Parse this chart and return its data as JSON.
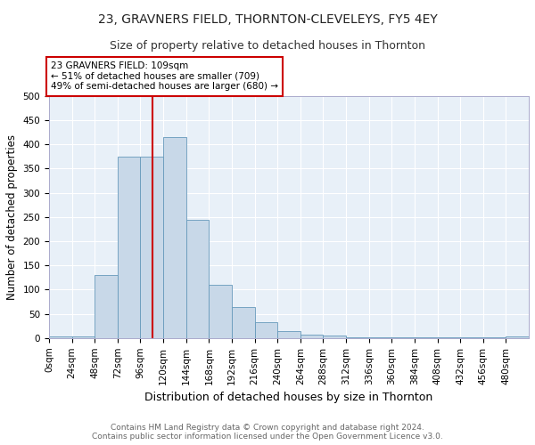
{
  "title1": "23, GRAVNERS FIELD, THORNTON-CLEVELEYS, FY5 4EY",
  "title2": "Size of property relative to detached houses in Thornton",
  "xlabel": "Distribution of detached houses by size in Thornton",
  "ylabel": "Number of detached properties",
  "bin_edges": [
    0,
    24,
    48,
    72,
    96,
    120,
    144,
    168,
    192,
    216,
    240,
    264,
    288,
    312,
    336,
    360,
    384,
    408,
    432,
    456,
    480,
    504
  ],
  "bar_heights": [
    3,
    3,
    130,
    375,
    375,
    415,
    245,
    110,
    65,
    33,
    15,
    8,
    5,
    2,
    1,
    1,
    1,
    1,
    1,
    1,
    3
  ],
  "bar_color": "#c8d8e8",
  "bar_edge_color": "#6699bb",
  "property_size": 109,
  "red_line_color": "#cc0000",
  "annotation_text": "23 GRAVNERS FIELD: 109sqm\n← 51% of detached houses are smaller (709)\n49% of semi-detached houses are larger (680) →",
  "annotation_box_color": "#ffffff",
  "annotation_box_edge": "#cc0000",
  "ylim": [
    0,
    500
  ],
  "yticks": [
    0,
    50,
    100,
    150,
    200,
    250,
    300,
    350,
    400,
    450,
    500
  ],
  "background_color": "#e8f0f8",
  "footer1": "Contains HM Land Registry data © Crown copyright and database right 2024.",
  "footer2": "Contains public sector information licensed under the Open Government Licence v3.0.",
  "title1_fontsize": 10,
  "title2_fontsize": 9,
  "xlabel_fontsize": 9,
  "ylabel_fontsize": 8.5,
  "tick_fontsize": 7.5,
  "footer_fontsize": 6.5
}
